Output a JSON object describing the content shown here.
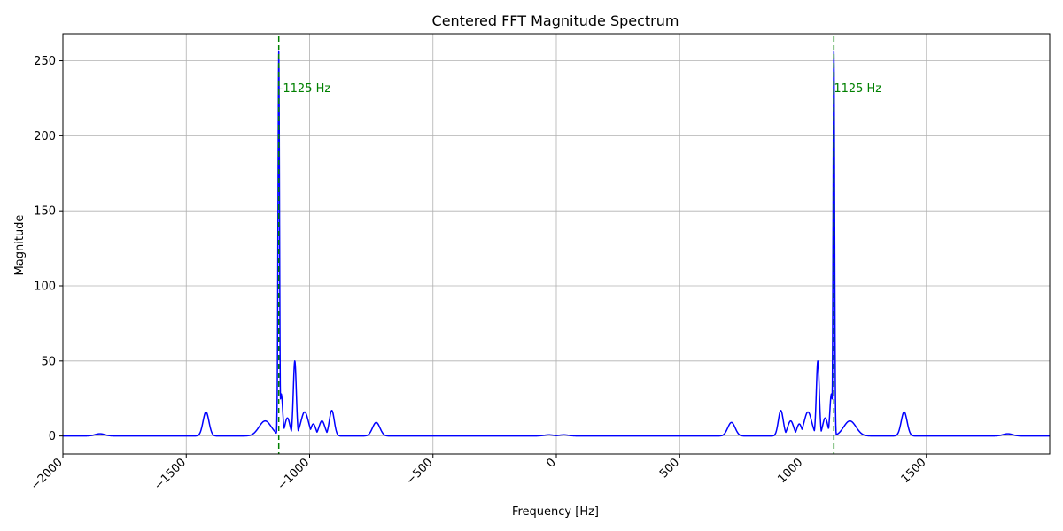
{
  "chart_data": {
    "type": "line",
    "title": "Centered FFT Magnitude Spectrum",
    "xlabel": "Frequency [Hz]",
    "ylabel": "Magnitude",
    "xlim": [
      -2000,
      2000
    ],
    "ylim": [
      -12,
      268
    ],
    "grid": true,
    "x_ticks": [
      -2000,
      -1500,
      -1000,
      -500,
      0,
      500,
      1000,
      1500
    ],
    "x_tick_labels": [
      "−2000",
      "−1500",
      "−1000",
      "−500",
      "0",
      "500",
      "1000",
      "1500"
    ],
    "y_ticks": [
      0,
      50,
      100,
      150,
      200,
      250
    ],
    "y_tick_labels": [
      "0",
      "50",
      "100",
      "150",
      "200",
      "250"
    ],
    "series": [
      {
        "color": "#0000ff",
        "peaks": [
          {
            "x": -1850,
            "y": 1.5,
            "width": 20
          },
          {
            "x": -1420,
            "y": 16,
            "width": 12
          },
          {
            "x": -1180,
            "y": 10,
            "width": 25
          },
          {
            "x": -1125,
            "y": 256,
            "width": 3
          },
          {
            "x": -1115,
            "y": 28,
            "width": 6
          },
          {
            "x": -1090,
            "y": 12,
            "width": 10
          },
          {
            "x": -1060,
            "y": 50,
            "width": 6
          },
          {
            "x": -1020,
            "y": 16,
            "width": 15
          },
          {
            "x": -985,
            "y": 8,
            "width": 10
          },
          {
            "x": -950,
            "y": 10,
            "width": 12
          },
          {
            "x": -910,
            "y": 17,
            "width": 10
          },
          {
            "x": -730,
            "y": 9,
            "width": 15
          },
          {
            "x": -30,
            "y": 0.8,
            "width": 20
          },
          {
            "x": 30,
            "y": 0.8,
            "width": 20
          },
          {
            "x": 710,
            "y": 9,
            "width": 15
          },
          {
            "x": 910,
            "y": 17,
            "width": 10
          },
          {
            "x": 950,
            "y": 10,
            "width": 12
          },
          {
            "x": 985,
            "y": 8,
            "width": 10
          },
          {
            "x": 1020,
            "y": 16,
            "width": 15
          },
          {
            "x": 1060,
            "y": 50,
            "width": 6
          },
          {
            "x": 1090,
            "y": 12,
            "width": 10
          },
          {
            "x": 1115,
            "y": 28,
            "width": 6
          },
          {
            "x": 1125,
            "y": 256,
            "width": 3
          },
          {
            "x": 1190,
            "y": 10,
            "width": 25
          },
          {
            "x": 1410,
            "y": 16,
            "width": 12
          },
          {
            "x": 1830,
            "y": 1.5,
            "width": 20
          }
        ]
      }
    ],
    "vlines": [
      {
        "x": -1125,
        "color": "#008000",
        "style": "dashed"
      },
      {
        "x": 1125,
        "color": "#008000",
        "style": "dashed"
      }
    ],
    "annotations": [
      {
        "x": -1125,
        "y": 232,
        "text": "-1125 Hz",
        "color": "#008000"
      },
      {
        "x": 1125,
        "y": 232,
        "text": "1125 Hz",
        "color": "#008000"
      }
    ]
  }
}
